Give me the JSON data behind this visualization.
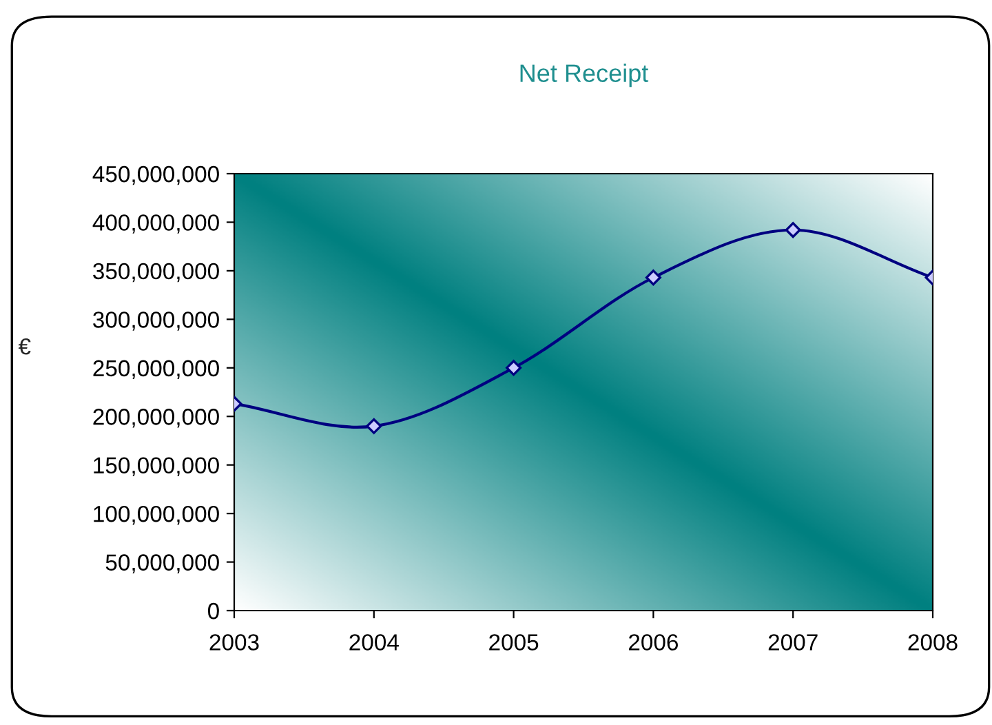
{
  "chart_data": {
    "type": "line",
    "title": "Net Receipt",
    "ylabel": "€",
    "x": [
      2003,
      2004,
      2005,
      2006,
      2007,
      2008
    ],
    "series": [
      {
        "color": "#000080",
        "values": [
          213000000,
          190000000,
          250000000,
          343000000,
          392000000,
          343000000
        ]
      }
    ],
    "xlim": [
      2003,
      2008
    ],
    "xticks": [
      2003,
      2004,
      2005,
      2006,
      2007,
      2008
    ],
    "ylim": [
      0,
      450000000
    ],
    "yticks": [
      {
        "value": 0,
        "label": "0"
      },
      {
        "value": 50000000,
        "label": "50,000,000"
      },
      {
        "value": 100000000,
        "label": "100,000,000"
      },
      {
        "value": 150000000,
        "label": "150,000,000"
      },
      {
        "value": 200000000,
        "label": "200,000,000"
      },
      {
        "value": 250000000,
        "label": "250,000,000"
      },
      {
        "value": 300000000,
        "label": "300,000,000"
      },
      {
        "value": 350000000,
        "label": "350,000,000"
      },
      {
        "value": 400000000,
        "label": "400,000,000"
      },
      {
        "value": 450000000,
        "label": "450,000,000"
      }
    ],
    "marker": "diamond",
    "line_style": "solid",
    "grid": false,
    "legend": false
  }
}
